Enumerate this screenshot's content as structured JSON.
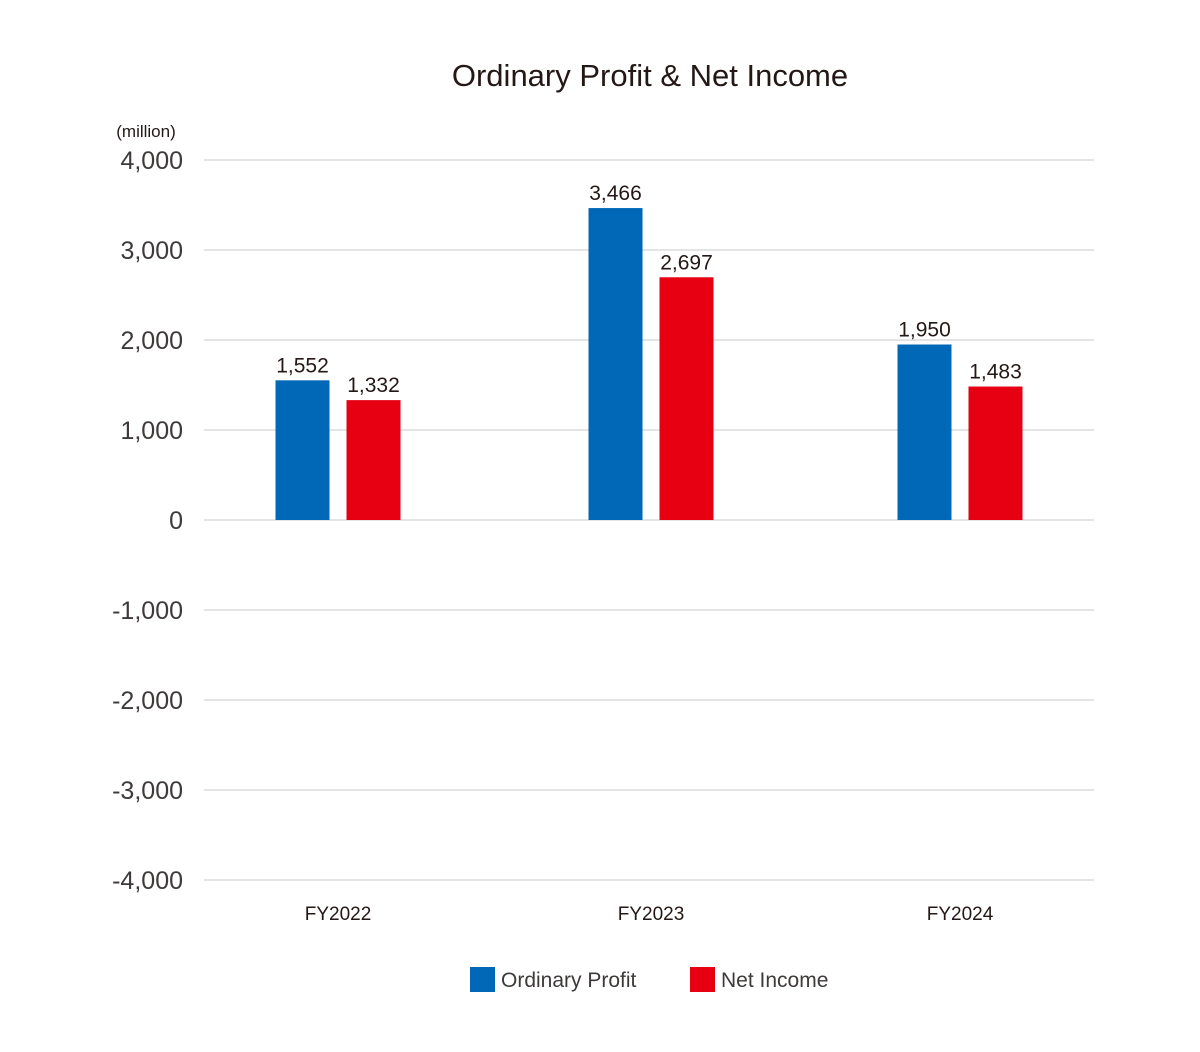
{
  "chart_data": {
    "type": "bar",
    "title": "Ordinary Profit & Net Income",
    "unit_label": "(million)",
    "categories": [
      "FY2022",
      "FY2023",
      "FY2024"
    ],
    "series": [
      {
        "name": "Ordinary Profit",
        "color": "#0068b7",
        "values": [
          1552,
          3466,
          1950
        ],
        "labels": [
          "1,552",
          "3,466",
          "1,950"
        ]
      },
      {
        "name": "Net Income",
        "color": "#e60012",
        "values": [
          1332,
          2697,
          1483
        ],
        "labels": [
          "1,332",
          "2,697",
          "1,483"
        ]
      }
    ],
    "ylim": [
      -4000,
      4000
    ],
    "yticks": [
      4000,
      3000,
      2000,
      1000,
      0,
      -1000,
      -2000,
      -3000,
      -4000
    ],
    "ytick_labels": [
      "4,000",
      "3,000",
      "2,000",
      "1,000",
      "0",
      "-1,000",
      "-2,000",
      "-3,000",
      "-4,000"
    ],
    "grid": true,
    "legend_position": "bottom-center"
  }
}
